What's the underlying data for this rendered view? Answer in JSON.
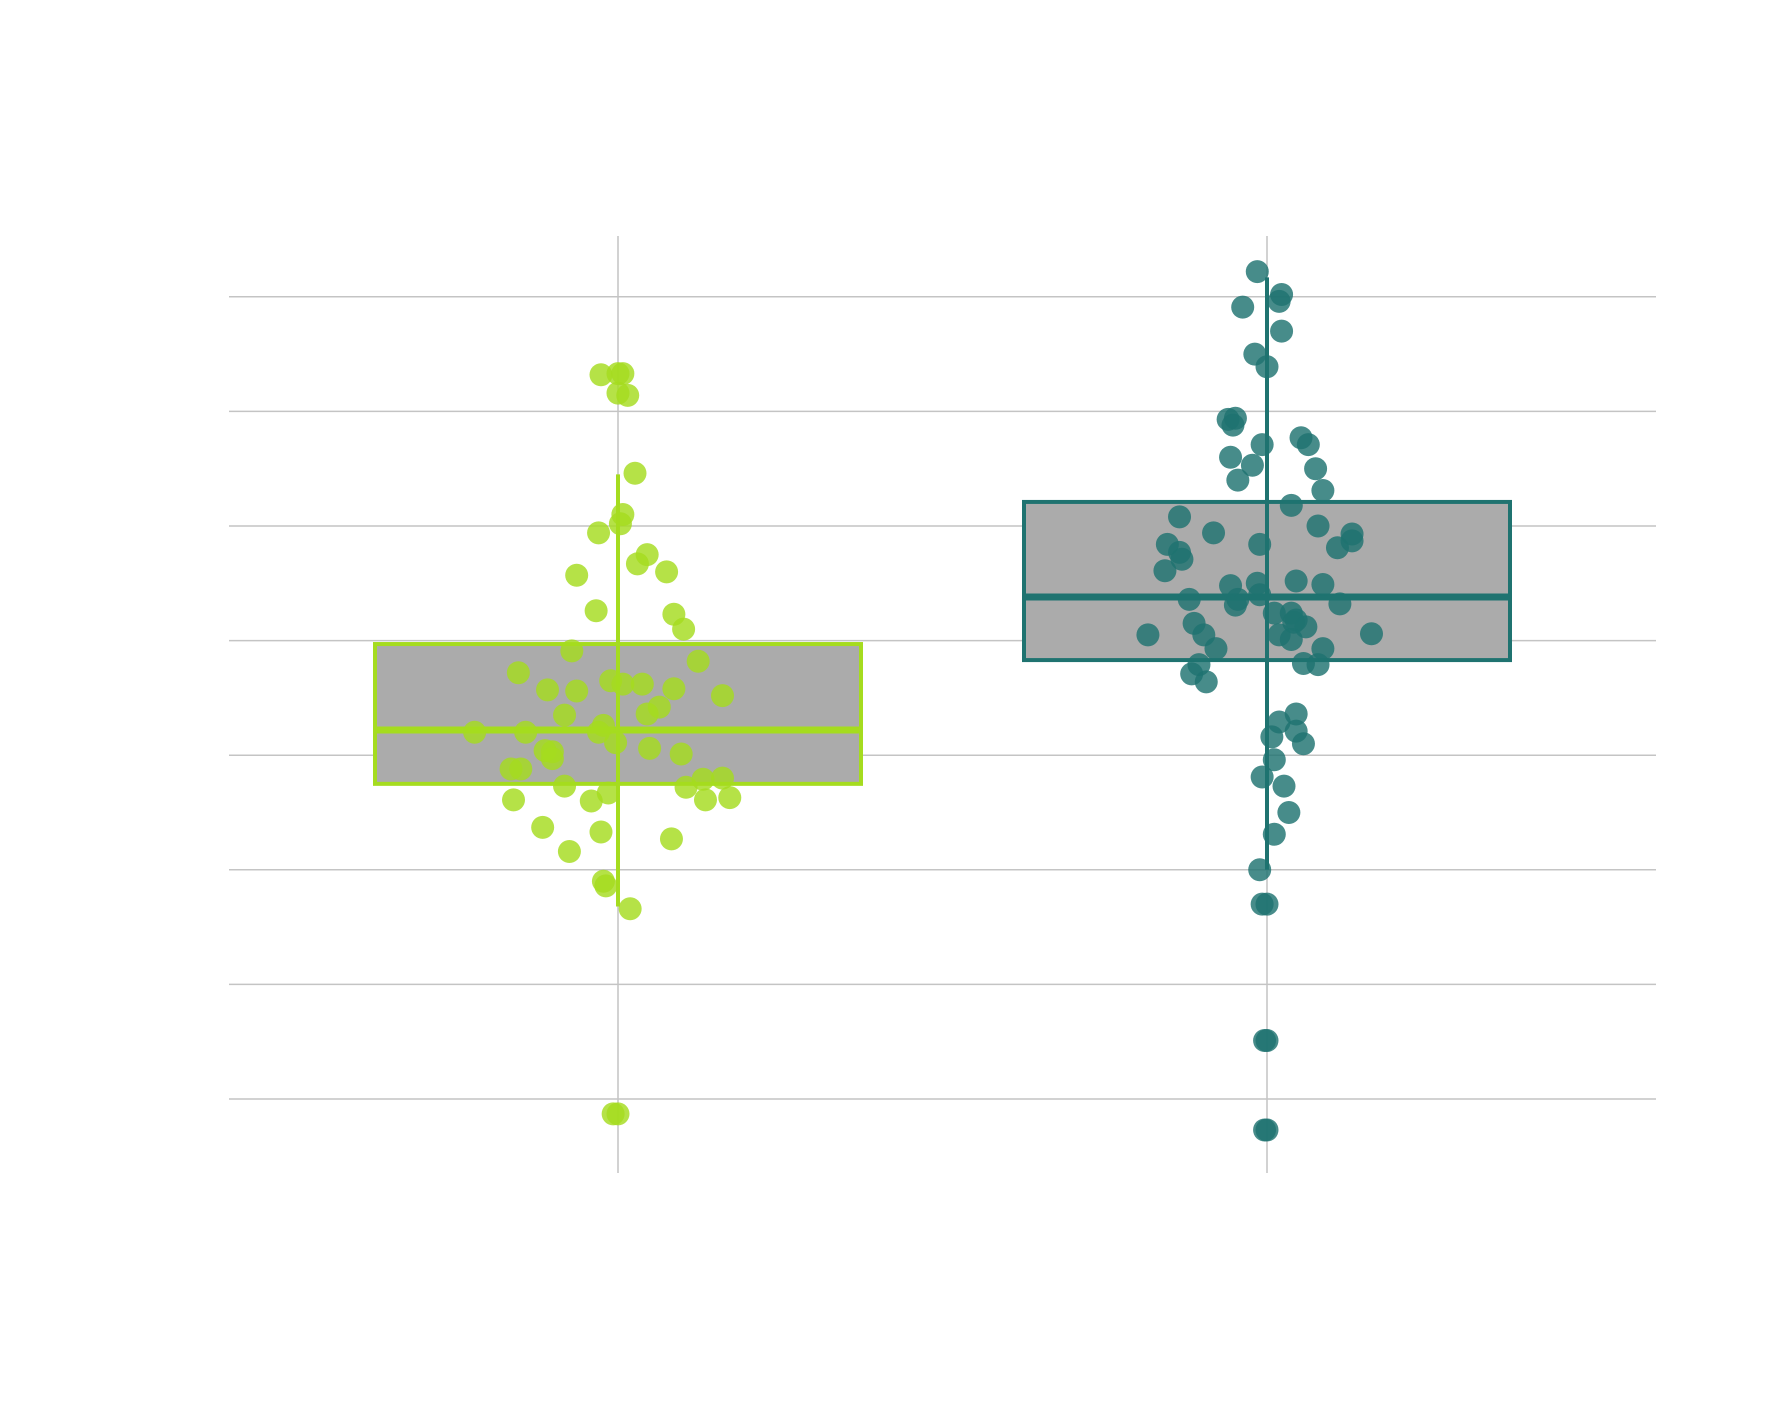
{
  "chart_data": {
    "type": "box",
    "title": "",
    "xlabel": "",
    "ylabel": "",
    "ylim": [
      -0.35,
      7.8
    ],
    "y_gridlines": [
      0,
      1,
      2,
      3,
      4,
      5,
      6,
      7
    ],
    "grid": true,
    "colors": {
      "grid": "#c4c4c4",
      "box_fill": "#ababab"
    },
    "series": [
      {
        "color": "#a5dc1f",
        "box": {
          "q1": 2.75,
          "median": 3.22,
          "q3": 3.97,
          "whisker_low": 1.68,
          "whisker_high": 5.45
        },
        "points": [
          [
            -0.07,
            6.32
          ],
          [
            0.0,
            6.33
          ],
          [
            0.02,
            6.33
          ],
          [
            0.04,
            6.14
          ],
          [
            0.0,
            6.16
          ],
          [
            0.07,
            5.46
          ],
          [
            0.02,
            5.1
          ],
          [
            0.01,
            5.02
          ],
          [
            -0.08,
            4.94
          ],
          [
            -0.17,
            4.57
          ],
          [
            0.08,
            4.67
          ],
          [
            0.12,
            4.75
          ],
          [
            0.2,
            4.6
          ],
          [
            -0.09,
            4.26
          ],
          [
            0.23,
            4.23
          ],
          [
            0.27,
            4.1
          ],
          [
            -0.19,
            3.91
          ],
          [
            0.33,
            3.82
          ],
          [
            -0.41,
            3.72
          ],
          [
            -0.29,
            3.57
          ],
          [
            -0.17,
            3.56
          ],
          [
            -0.03,
            3.65
          ],
          [
            0.02,
            3.62
          ],
          [
            0.1,
            3.62
          ],
          [
            0.23,
            3.58
          ],
          [
            0.43,
            3.52
          ],
          [
            0.12,
            3.36
          ],
          [
            0.17,
            3.42
          ],
          [
            -0.22,
            3.35
          ],
          [
            -0.06,
            3.26
          ],
          [
            -0.38,
            3.2
          ],
          [
            -0.59,
            3.2
          ],
          [
            -0.27,
            3.03
          ],
          [
            -0.3,
            3.04
          ],
          [
            -0.27,
            2.97
          ],
          [
            -0.08,
            3.2
          ],
          [
            -0.01,
            3.11
          ],
          [
            0.13,
            3.06
          ],
          [
            0.26,
            3.01
          ],
          [
            -0.44,
            2.88
          ],
          [
            -0.4,
            2.88
          ],
          [
            -0.22,
            2.73
          ],
          [
            0.28,
            2.72
          ],
          [
            0.35,
            2.79
          ],
          [
            0.43,
            2.8
          ],
          [
            -0.11,
            2.6
          ],
          [
            -0.04,
            2.67
          ],
          [
            0.36,
            2.61
          ],
          [
            -0.43,
            2.61
          ],
          [
            0.46,
            2.63
          ],
          [
            -0.31,
            2.37
          ],
          [
            -0.2,
            2.16
          ],
          [
            -0.07,
            2.33
          ],
          [
            0.22,
            2.27
          ],
          [
            -0.06,
            1.9
          ],
          [
            -0.05,
            1.86
          ],
          [
            0.05,
            1.66
          ],
          [
            -0.02,
            -0.13
          ],
          [
            0.0,
            -0.13
          ]
        ]
      },
      {
        "color": "#1f7370",
        "box": {
          "q1": 3.83,
          "median": 4.38,
          "q3": 5.21,
          "whisker_low": 2.0,
          "whisker_high": 7.17
        },
        "points": [
          [
            -0.04,
            7.22
          ],
          [
            0.06,
            7.02
          ],
          [
            0.05,
            6.96
          ],
          [
            -0.1,
            6.91
          ],
          [
            0.06,
            6.7
          ],
          [
            -0.05,
            6.5
          ],
          [
            0.0,
            6.39
          ],
          [
            -0.16,
            5.93
          ],
          [
            -0.13,
            5.94
          ],
          [
            -0.14,
            5.88
          ],
          [
            -0.02,
            5.71
          ],
          [
            0.14,
            5.77
          ],
          [
            0.17,
            5.71
          ],
          [
            -0.15,
            5.6
          ],
          [
            -0.06,
            5.53
          ],
          [
            -0.12,
            5.4
          ],
          [
            0.2,
            5.5
          ],
          [
            0.23,
            5.31
          ],
          [
            0.1,
            5.18
          ],
          [
            -0.36,
            5.08
          ],
          [
            -0.22,
            4.94
          ],
          [
            0.21,
            5.0
          ],
          [
            0.35,
            4.93
          ],
          [
            0.35,
            4.87
          ],
          [
            -0.03,
            4.84
          ],
          [
            -0.41,
            4.84
          ],
          [
            -0.36,
            4.77
          ],
          [
            0.29,
            4.81
          ],
          [
            -0.35,
            4.71
          ],
          [
            -0.42,
            4.61
          ],
          [
            -0.15,
            4.48
          ],
          [
            -0.04,
            4.5
          ],
          [
            0.12,
            4.52
          ],
          [
            0.23,
            4.49
          ],
          [
            -0.12,
            4.36
          ],
          [
            -0.03,
            4.4
          ],
          [
            -0.32,
            4.36
          ],
          [
            -0.13,
            4.31
          ],
          [
            0.3,
            4.32
          ],
          [
            0.03,
            4.24
          ],
          [
            0.1,
            4.24
          ],
          [
            0.12,
            4.18
          ],
          [
            -0.3,
            4.15
          ],
          [
            0.11,
            4.16
          ],
          [
            0.16,
            4.12
          ],
          [
            -0.49,
            4.05
          ],
          [
            -0.26,
            4.05
          ],
          [
            0.05,
            4.05
          ],
          [
            0.1,
            4.01
          ],
          [
            0.43,
            4.06
          ],
          [
            -0.21,
            3.93
          ],
          [
            0.23,
            3.93
          ],
          [
            -0.28,
            3.79
          ],
          [
            0.15,
            3.8
          ],
          [
            0.21,
            3.79
          ],
          [
            -0.31,
            3.71
          ],
          [
            -0.25,
            3.64
          ],
          [
            0.12,
            3.36
          ],
          [
            0.05,
            3.29
          ],
          [
            0.12,
            3.21
          ],
          [
            0.02,
            3.16
          ],
          [
            0.15,
            3.1
          ],
          [
            0.03,
            2.96
          ],
          [
            -0.02,
            2.81
          ],
          [
            0.07,
            2.73
          ],
          [
            0.09,
            2.5
          ],
          [
            0.03,
            2.31
          ],
          [
            -0.03,
            2.0
          ],
          [
            -0.02,
            1.7
          ],
          [
            0.0,
            1.7
          ],
          [
            -0.01,
            0.51
          ],
          [
            0.0,
            0.51
          ],
          [
            -0.01,
            -0.27
          ],
          [
            0.0,
            -0.27
          ]
        ]
      }
    ]
  }
}
